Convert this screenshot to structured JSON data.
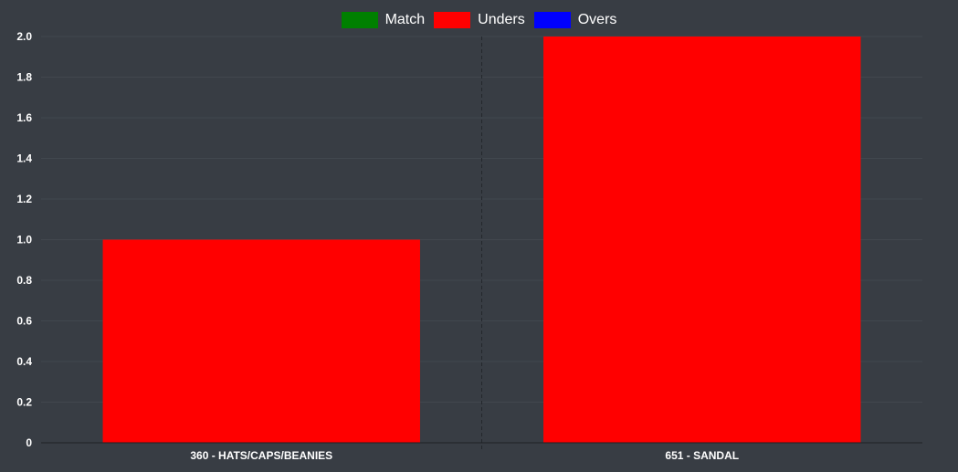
{
  "colors": {
    "background": "#383d44",
    "grid": "#41474e",
    "divider": "#23272c",
    "axis": "#1e2125",
    "text": "#ffffff"
  },
  "legend": [
    {
      "label": "Match",
      "color": "#008000"
    },
    {
      "label": "Unders",
      "color": "#ff0000"
    },
    {
      "label": "Overs",
      "color": "#0000ff"
    }
  ],
  "chart_data": {
    "type": "bar",
    "categories": [
      "360 - HATS/CAPS/BEANIES",
      "651 - SANDAL"
    ],
    "series": [
      {
        "name": "Match",
        "color": "#008000",
        "values": [
          0,
          0
        ]
      },
      {
        "name": "Unders",
        "color": "#ff0000",
        "values": [
          1,
          2
        ]
      },
      {
        "name": "Overs",
        "color": "#0000ff",
        "values": [
          0,
          0
        ]
      }
    ],
    "ylim": [
      0,
      2
    ],
    "yticks": [
      "0",
      "0.2",
      "0.4",
      "0.6",
      "0.8",
      "1.0",
      "1.2",
      "1.4",
      "1.6",
      "1.8",
      "2.0"
    ],
    "grid": true,
    "legend_position": "top"
  }
}
